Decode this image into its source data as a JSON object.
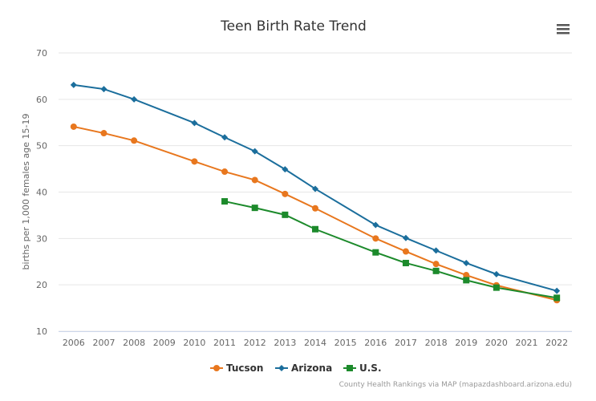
{
  "chart_data": {
    "type": "line",
    "title": "Teen Birth Rate Trend",
    "xlabel": "",
    "ylabel": "births per 1,000 females age 15-19",
    "ylim": [
      10,
      70
    ],
    "yticks": [
      10,
      20,
      30,
      40,
      50,
      60,
      70
    ],
    "grid": true,
    "legend": "bottom-center",
    "categories": [
      "2006",
      "2007",
      "2008",
      "2009",
      "2010",
      "2011",
      "2012",
      "2013",
      "2014",
      "2015",
      "2016",
      "2017",
      "2018",
      "2019",
      "2020",
      "2021",
      "2022"
    ],
    "series": [
      {
        "name": "Tucson",
        "color": "#e8771e",
        "marker": "circle",
        "values": [
          54.1,
          52.7,
          51.1,
          null,
          46.6,
          44.4,
          42.6,
          39.6,
          36.5,
          null,
          30.0,
          27.2,
          24.5,
          22.1,
          19.9,
          null,
          16.7
        ]
      },
      {
        "name": "Arizona",
        "color": "#1b6e9c",
        "marker": "diamond",
        "values": [
          63.1,
          62.2,
          60.0,
          null,
          54.9,
          51.8,
          48.8,
          44.9,
          40.7,
          null,
          32.9,
          30.1,
          27.4,
          24.7,
          22.3,
          null,
          18.7
        ]
      },
      {
        "name": "U.S.",
        "color": "#1c8a2b",
        "marker": "square",
        "values": [
          null,
          null,
          null,
          null,
          null,
          38.0,
          36.6,
          35.1,
          32.0,
          null,
          27.0,
          24.7,
          23.0,
          21.0,
          19.4,
          null,
          17.2
        ]
      }
    ]
  },
  "credit": "County Health Rankings via MAP (mapazdashboard.arizona.edu)",
  "menu_icon": "hamburger-menu-icon"
}
